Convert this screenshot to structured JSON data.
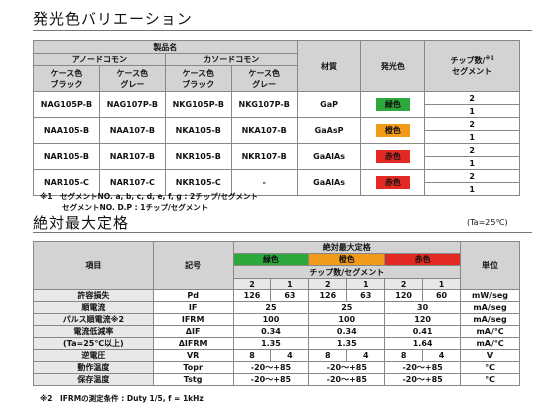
{
  "section1": {
    "title": "発光色バリエーション",
    "header": {
      "product_name": "製品名",
      "anode": "アノードコモン",
      "cathode": "カソードコモン",
      "case_black_1": "ケース色",
      "case_black_2": "ブラック",
      "case_gray_1": "ケース色",
      "case_gray_2": "グレー",
      "material": "材質",
      "color": "発光色",
      "chip_1": "チップ数/",
      "chip_2": "セグメント",
      "chip_mark": "※1"
    },
    "rows": [
      {
        "a_black": "NAG105P-B",
        "a_gray": "NAG107P-B",
        "c_black": "NKG105P-B",
        "c_gray": "NKG107P-B",
        "material": "GaP",
        "color": "緑色",
        "chip1": "2",
        "chip2": "1"
      },
      {
        "a_black": "NAA105-B",
        "a_gray": "NAA107-B",
        "c_black": "NKA105-B",
        "c_gray": "NKA107-B",
        "material": "GaAsP",
        "color": "橙色",
        "chip1": "2",
        "chip2": "1"
      },
      {
        "a_black": "NAR105-B",
        "a_gray": "NAR107-B",
        "c_black": "NKR105-B",
        "c_gray": "NKR107-B",
        "material": "GaAlAs",
        "color": "赤色",
        "chip1": "2",
        "chip2": "1"
      },
      {
        "a_black": "NAR105-C",
        "a_gray": "NAR107-C",
        "c_black": "NKR105-C",
        "c_gray": "-",
        "material": "GaAlAs",
        "color": "赤色",
        "chip1": "2",
        "chip2": "1"
      }
    ],
    "note1": "※1　セグメントNO. a, b, c, d, e, f, g : 2チップ/セグメント",
    "note2": "セグメントNO. D.P : 1チップ/セグメント"
  },
  "section2": {
    "title": "絶対最大定格",
    "ta": "(Ta=25℃)",
    "header": {
      "item": "項目",
      "symbol": "記号",
      "abs_max": "絶対最大定格",
      "unit": "単位",
      "green": "緑色",
      "orange": "橙色",
      "red": "赤色",
      "chip_seg": "チップ数/セグメント",
      "n2a": "2",
      "n1a": "1",
      "n2b": "2",
      "n1b": "1",
      "n2c": "2",
      "n1c": "1"
    },
    "rows": [
      {
        "item": "許容損失",
        "sym": "Pd",
        "v": [
          "126",
          "63",
          "126",
          "63",
          "120",
          "60"
        ],
        "unit": "mW/seg"
      },
      {
        "item": "順電流",
        "sym": "IF",
        "m": [
          "25",
          "25",
          "30"
        ],
        "unit": "mA/seg"
      },
      {
        "item": "パルス順電流※2",
        "sym": "IFRM",
        "m": [
          "100",
          "100",
          "120"
        ],
        "unit": "mA/seg"
      },
      {
        "item": "電流低減率",
        "sym": "ΔIF",
        "m": [
          "0.34",
          "0.34",
          "0.41"
        ],
        "unit": "mA/℃"
      },
      {
        "item": "(Ta=25℃以上)",
        "sym": "ΔIFRM",
        "m": [
          "1.35",
          "1.35",
          "1.64"
        ],
        "unit": "mA/℃"
      },
      {
        "item": "逆電圧",
        "sym": "VR",
        "v": [
          "8",
          "4",
          "8",
          "4",
          "8",
          "4"
        ],
        "unit": "V"
      },
      {
        "item": "動作温度",
        "sym": "Topr",
        "m": [
          "-20〜+85",
          "-20〜+85",
          "-20〜+85"
        ],
        "unit": "℃"
      },
      {
        "item": "保存温度",
        "sym": "Tstg",
        "m": [
          "-20〜+85",
          "-20〜+85",
          "-20〜+85"
        ],
        "unit": "℃"
      }
    ],
    "note": "※2　IFRMの測定条件 : Duty 1/5, f = 1kHz"
  },
  "colors": {
    "green": "#2ca83c",
    "orange": "#f29a1a",
    "red": "#e32a22",
    "header_gray": "#d3d3d3"
  }
}
